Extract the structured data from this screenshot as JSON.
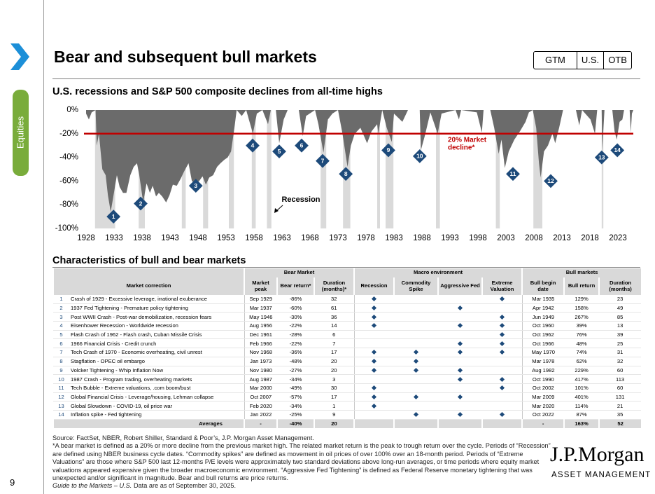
{
  "header": {
    "title": "Bear and subsequent bull markets",
    "tabs": [
      "GTM",
      "U.S.",
      "OTB"
    ],
    "side_tab": "Equities",
    "page_number": "9"
  },
  "chart_data": {
    "type": "area",
    "title": "U.S. recessions and S&P 500 composite declines from all-time highs",
    "color": "#6b6b6b",
    "x": [
      1928,
      1928.5,
      1929.0,
      1929.7,
      1929.9,
      1930.3,
      1930.9,
      1931.5,
      1931.9,
      1932.4,
      1932.8,
      1933.5,
      1934.0,
      1934.6,
      1935.2,
      1935.9,
      1936.5,
      1937.1,
      1937.5,
      1938.2,
      1938.8,
      1939.4,
      1939.9,
      1940.5,
      1941.0,
      1941.6,
      1942.3,
      1942.9,
      1943.5,
      1944.2,
      1944.9,
      1945.5,
      1946.3,
      1946.9,
      1947.5,
      1948.2,
      1948.8,
      1949.4,
      1950.0,
      1950.7,
      1951.4,
      1952.0,
      1952.7,
      1953.3,
      1953.9,
      1954.5,
      1954.9,
      1955.8,
      1956.6,
      1957.2,
      1957.8,
      1958.5,
      1959.5,
      1960.5,
      1961.0,
      1961.9,
      1962.5,
      1963.3,
      1964.0,
      1966.0,
      1966.7,
      1967.3,
      1968.9,
      1969.5,
      1970.4,
      1971.2,
      1972.0,
      1973.0,
      1973.8,
      1974.7,
      1975.3,
      1976.0,
      1977.0,
      1978.2,
      1979.0,
      1980.0,
      1980.2,
      1980.9,
      1981.7,
      1982.6,
      1983.0,
      1984.5,
      1985.5,
      1987.6,
      1987.8,
      1988.5,
      1989.5,
      1990.8,
      1991.5,
      1994.0,
      1994.6,
      1995.0,
      1997.8,
      1998.7,
      1999.0,
      2000.2,
      2000.9,
      2001.7,
      2002.2,
      2002.8,
      2003.5,
      2004.5,
      2005.5,
      2006.5,
      2007.1,
      2007.8,
      2008.4,
      2008.9,
      2009.2,
      2009.8,
      2010.5,
      2011.3,
      2011.8,
      2012.5,
      2013.2,
      2015.5,
      2016.1,
      2016.6,
      2018.1,
      2018.9,
      2019.3,
      2020.1,
      2020.2,
      2020.6,
      2022.0,
      2022.4,
      2022.8,
      2023.3,
      2023.8,
      2024.1,
      2025.1,
      2025.3,
      2025.5,
      2025.75
    ],
    "values": [
      -3,
      -8,
      -2,
      0,
      -30,
      -20,
      -50,
      -55,
      -72,
      -86,
      -75,
      -55,
      -65,
      -70,
      -70,
      -55,
      -48,
      -45,
      -55,
      -78,
      -62,
      -70,
      -64,
      -73,
      -70,
      -73,
      -78,
      -72,
      -63,
      -64,
      -58,
      -52,
      -45,
      -60,
      -62,
      -60,
      -56,
      -63,
      -57,
      -55,
      -48,
      -45,
      -42,
      -40,
      -35,
      -15,
      0,
      -5,
      0,
      -10,
      -20,
      -3,
      0,
      -12,
      0,
      0,
      -28,
      -8,
      0,
      0,
      -22,
      -5,
      0,
      -12,
      -36,
      -8,
      -3,
      0,
      -20,
      -48,
      -30,
      -20,
      -15,
      -28,
      -18,
      -12,
      -20,
      0,
      -15,
      -27,
      -3,
      -10,
      0,
      0,
      -34,
      -22,
      -2,
      -20,
      -3,
      0,
      -8,
      0,
      -2,
      -19,
      0,
      0,
      -15,
      -37,
      -25,
      -49,
      -35,
      -25,
      -18,
      -10,
      -2,
      0,
      -15,
      -45,
      -57,
      -35,
      -30,
      -20,
      -28,
      -15,
      0,
      0,
      -13,
      0,
      -8,
      -20,
      0,
      0,
      -34,
      0,
      0,
      -18,
      -25,
      -10,
      -8,
      0,
      0,
      -19,
      -3,
      0
    ],
    "recessions": [
      [
        1929.6,
        1933.2
      ],
      [
        1937.4,
        1938.5
      ],
      [
        1945.1,
        1945.8
      ],
      [
        1948.9,
        1949.8
      ],
      [
        1953.5,
        1954.4
      ],
      [
        1957.6,
        1958.3
      ],
      [
        1960.3,
        1961.1
      ],
      [
        1969.9,
        1970.9
      ],
      [
        1973.9,
        1975.2
      ],
      [
        1980.0,
        1980.5
      ],
      [
        1981.5,
        1982.9
      ],
      [
        1990.5,
        1991.2
      ],
      [
        2001.2,
        2001.9
      ],
      [
        2007.9,
        2009.5
      ],
      [
        2020.1,
        2020.4
      ]
    ],
    "recession_color": "#dadada",
    "recession_label": "Recession",
    "threshold": {
      "value": -20,
      "label_lines": [
        "20% Market",
        "decline*"
      ],
      "color": "#c00000"
    },
    "markers": [
      {
        "label": "1",
        "x": 1932.9,
        "y": -90
      },
      {
        "label": "2",
        "x": 1937.75,
        "y": -79
      },
      {
        "label": "3",
        "x": 1947.6,
        "y": -64
      },
      {
        "label": "4",
        "x": 1957.75,
        "y": -30
      },
      {
        "label": "5",
        "x": 1962.5,
        "y": -35
      },
      {
        "label": "6",
        "x": 1966.5,
        "y": -30
      },
      {
        "label": "7",
        "x": 1970.25,
        "y": -43
      },
      {
        "label": "8",
        "x": 1974.4,
        "y": -54
      },
      {
        "label": "9",
        "x": 1982,
        "y": -34
      },
      {
        "label": "10",
        "x": 1987.6,
        "y": -39
      },
      {
        "label": "11",
        "x": 2004.25,
        "y": -54
      },
      {
        "label": "12",
        "x": 2011,
        "y": -60
      },
      {
        "label": "13",
        "x": 2020.1,
        "y": -40
      },
      {
        "label": "14",
        "x": 2022.9,
        "y": -34
      }
    ],
    "marker_color": "#1d4a7a",
    "xlim": [
      1928,
      2025.75
    ],
    "ylim": [
      -100,
      0
    ],
    "xticks": [
      1928,
      1933,
      1938,
      1943,
      1948,
      1953,
      1958,
      1963,
      1968,
      1973,
      1978,
      1983,
      1988,
      1993,
      1998,
      2003,
      2008,
      2013,
      2018,
      2023
    ],
    "yticks": [
      {
        "value": 0,
        "label": "0%"
      },
      {
        "value": -20,
        "label": "-20%"
      },
      {
        "value": -40,
        "label": "-40%"
      },
      {
        "value": -60,
        "label": "-60%"
      },
      {
        "value": -80,
        "label": "-80%"
      },
      {
        "value": -100,
        "label": "-100%"
      }
    ]
  },
  "table": {
    "title": "Characteristics of bull and bear markets",
    "group_headers": [
      "Bear Market",
      "Macro environment",
      "Bull markets"
    ],
    "column_headers": [
      "Market correction",
      "Market peak",
      "Bear return*",
      "Duration (months)*",
      "Recession",
      "Commodity Spike",
      "Aggressive Fed",
      "Extreme Valuation",
      "Bull begin date",
      "Bull return",
      "Duration (months)"
    ],
    "rows": [
      [
        "1",
        "Crash of 1929 - Excessive leverage, irrational exuberance",
        "Sep 1929",
        "-86%",
        "32",
        true,
        false,
        false,
        true,
        "Mar 1935",
        "129%",
        "23"
      ],
      [
        "2",
        "1937 Fed Tightening - Premature policy tightening",
        "Mar 1937",
        "-60%",
        "61",
        true,
        false,
        true,
        false,
        "Apr 1942",
        "158%",
        "49"
      ],
      [
        "3",
        "Post WWII Crash - Post-war demobilization, recession fears",
        "May 1946",
        "-30%",
        "36",
        true,
        false,
        false,
        true,
        "Jun 1949",
        "267%",
        "85"
      ],
      [
        "4",
        "Eisenhower Recession - Worldwide recession",
        "Aug 1956",
        "-22%",
        "14",
        true,
        false,
        true,
        true,
        "Oct 1960",
        "39%",
        "13"
      ],
      [
        "5",
        "Flash Crash of 1962 - Flash crash, Cuban Missile Crisis",
        "Dec 1961",
        "-28%",
        "6",
        false,
        false,
        false,
        true,
        "Oct 1962",
        "76%",
        "39"
      ],
      [
        "6",
        "1966 Financial Crisis - Credit crunch",
        "Feb 1966",
        "-22%",
        "7",
        false,
        false,
        true,
        true,
        "Oct 1966",
        "48%",
        "25"
      ],
      [
        "7",
        "Tech Crash of 1970 - Economic overheating, civil unrest",
        "Nov 1968",
        "-36%",
        "17",
        true,
        true,
        true,
        true,
        "May 1970",
        "74%",
        "31"
      ],
      [
        "8",
        "Stagflation - OPEC oil embargo",
        "Jan 1973",
        "-48%",
        "20",
        true,
        true,
        false,
        false,
        "Mar 1978",
        "62%",
        "32"
      ],
      [
        "9",
        "Volcker Tightening - Whip Inflation Now",
        "Nov 1980",
        "-27%",
        "20",
        true,
        true,
        true,
        false,
        "Aug 1982",
        "229%",
        "60"
      ],
      [
        "10",
        "1987 Crash - Program trading, overheating markets",
        "Aug 1987",
        "-34%",
        "3",
        false,
        false,
        true,
        true,
        "Oct 1990",
        "417%",
        "113"
      ],
      [
        "11",
        "Tech Bubble - Extreme valuations, .com boom/bust",
        "Mar 2000",
        "-49%",
        "30",
        true,
        false,
        false,
        true,
        "Oct 2002",
        "101%",
        "60"
      ],
      [
        "12",
        "Global Financial Crisis - Leverage/housing, Lehman collapse",
        "Oct 2007",
        "-57%",
        "17",
        true,
        true,
        true,
        false,
        "Mar 2009",
        "401%",
        "131"
      ],
      [
        "13",
        "Global Slowdown - COVID-19, oil price war",
        "Feb 2020",
        "-34%",
        "1",
        true,
        false,
        false,
        false,
        "Mar 2020",
        "114%",
        "21"
      ],
      [
        "14",
        "Inflation spike - Fed tightening",
        "Jan 2022",
        "-25%",
        "9",
        false,
        true,
        true,
        true,
        "Oct 2022",
        "87%",
        "35"
      ]
    ],
    "averages": [
      "Averages",
      "-",
      "-40%",
      "20",
      "-",
      "163%",
      "52"
    ]
  },
  "footnotes": {
    "source": "Source: FactSet, NBER, Robert Shiller, Standard & Poor’s, J.P. Morgan Asset Management.",
    "definition": "*A bear market is defined as a 20% or more decline from the previous market high. The related market return is the peak to trough return over the cycle. Periods of “Recession” are defined using NBER business cycle dates. “Commodity spikes” are defined as movement in oil prices of over 100% over an 18-month period. Periods of “Extreme Valuations” are those where S&P 500 last 12-months P/E levels were approximately two standard deviations above long-run averages, or time periods where equity market valuations appeared expensive given the broader macroeconomic environment. “Aggressive Fed Tightening” is defined as Federal Reserve monetary tightening that was unexpected and/or significant in magnitude. Bear and bull returns are price returns.",
    "guide": "Guide to the Markets – U.S.",
    "date_note": "Data are as of September 30, 2025."
  },
  "logo": {
    "name": "J.P.Morgan",
    "subtitle": "ASSET MANAGEMENT"
  }
}
